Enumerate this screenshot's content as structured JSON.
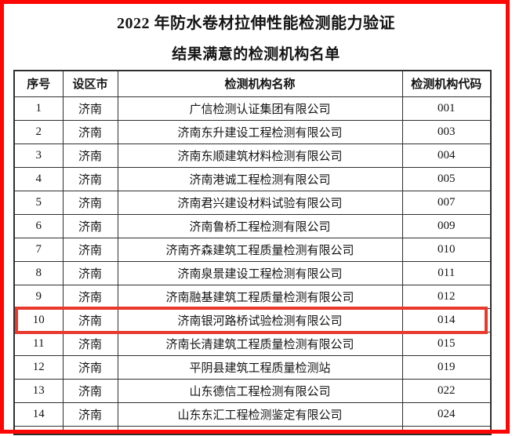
{
  "page": {
    "title": "2022 年防水卷材拉伸性能检测能力验证",
    "subtitle": "结果满意的检测机构名单"
  },
  "table": {
    "headers": {
      "seq": "序号",
      "city": "设区市",
      "name": "检测机构名称",
      "code": "检测机构代码"
    },
    "rows": [
      {
        "seq": "1",
        "city": "济南",
        "name": "广信检测认证集团有限公司",
        "code": "001"
      },
      {
        "seq": "2",
        "city": "济南",
        "name": "济南东升建设工程检测有限公司",
        "code": "003"
      },
      {
        "seq": "3",
        "city": "济南",
        "name": "济南东顺建筑材料检测有限公司",
        "code": "004"
      },
      {
        "seq": "4",
        "city": "济南",
        "name": "济南港诚工程检测有限公司",
        "code": "005"
      },
      {
        "seq": "5",
        "city": "济南",
        "name": "济南君兴建设材料试验有限公司",
        "code": "007"
      },
      {
        "seq": "6",
        "city": "济南",
        "name": "济南鲁桥工程检测有限公司",
        "code": "009"
      },
      {
        "seq": "7",
        "city": "济南",
        "name": "济南齐森建筑工程质量检测有限公司",
        "code": "010"
      },
      {
        "seq": "8",
        "city": "济南",
        "name": "济南泉景建设工程检测有限公司",
        "code": "011"
      },
      {
        "seq": "9",
        "city": "济南",
        "name": "济南融基建筑工程质量检测有限公司",
        "code": "012"
      },
      {
        "seq": "10",
        "city": "济南",
        "name": "济南银河路桥试验检测有限公司",
        "code": "014"
      },
      {
        "seq": "11",
        "city": "济南",
        "name": "济南长清建筑工程质量检测有限公司",
        "code": "015"
      },
      {
        "seq": "12",
        "city": "济南",
        "name": "平阴县建筑工程质量检测站",
        "code": "019"
      },
      {
        "seq": "13",
        "city": "济南",
        "name": "山东德信工程检测有限公司",
        "code": "022"
      },
      {
        "seq": "14",
        "city": "济南",
        "name": "山东东汇工程检测鉴定有限公司",
        "code": "024"
      }
    ],
    "highlighted_seq": "10"
  },
  "colors": {
    "frame_red": "#fd0604",
    "highlight_red": "#e8392d",
    "table_border": "#2f2f2f"
  }
}
